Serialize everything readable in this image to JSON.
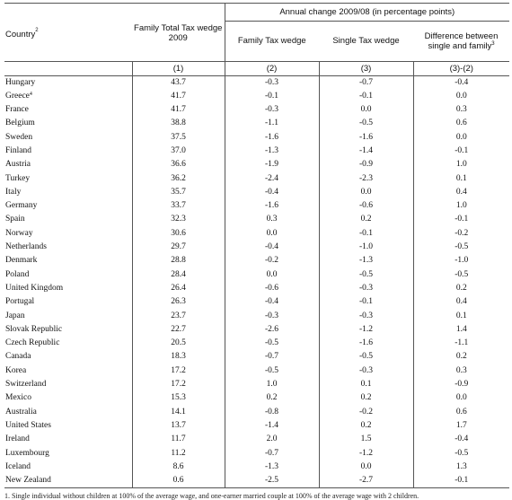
{
  "header": {
    "country": "Country",
    "country_sup": "2",
    "family_total_line1": "Family Total Tax wedge",
    "family_total_line2": "2009",
    "annual_change": "Annual change 2009/08  (in percentage points)",
    "family_tax_wedge": "Family Tax wedge",
    "single_tax_wedge": "Single Tax wedge",
    "difference_line1": "Difference between",
    "difference_line2": "single and family",
    "difference_sup": "3",
    "index_1": "(1)",
    "index_2": "(2)",
    "index_3": "(3)",
    "index_4": "(3)-(2)"
  },
  "rows": [
    {
      "country": "Hungary",
      "sup": "",
      "total": "43.7",
      "family": "-0.3",
      "single": "-0.7",
      "diff": "-0.4"
    },
    {
      "country": "Greece",
      "sup": "4",
      "total": "41.7",
      "family": "-0.1",
      "single": "-0.1",
      "diff": "0.0"
    },
    {
      "country": "France",
      "sup": "",
      "total": "41.7",
      "family": "-0.3",
      "single": "0.0",
      "diff": "0.3"
    },
    {
      "country": "Belgium",
      "sup": "",
      "total": "38.8",
      "family": "-1.1",
      "single": "-0.5",
      "diff": "0.6"
    },
    {
      "country": "Sweden",
      "sup": "",
      "total": "37.5",
      "family": "-1.6",
      "single": "-1.6",
      "diff": "0.0"
    },
    {
      "country": "Finland",
      "sup": "",
      "total": "37.0",
      "family": "-1.3",
      "single": "-1.4",
      "diff": "-0.1"
    },
    {
      "country": "Austria",
      "sup": "",
      "total": "36.6",
      "family": "-1.9",
      "single": "-0.9",
      "diff": "1.0"
    },
    {
      "country": "Turkey",
      "sup": "",
      "total": "36.2",
      "family": "-2.4",
      "single": "-2.3",
      "diff": "0.1"
    },
    {
      "country": "Italy",
      "sup": "",
      "total": "35.7",
      "family": "-0.4",
      "single": "0.0",
      "diff": "0.4"
    },
    {
      "country": "Germany",
      "sup": "",
      "total": "33.7",
      "family": "-1.6",
      "single": "-0.6",
      "diff": "1.0"
    },
    {
      "country": "Spain",
      "sup": "",
      "total": "32.3",
      "family": "0.3",
      "single": "0.2",
      "diff": "-0.1"
    },
    {
      "country": "Norway",
      "sup": "",
      "total": "30.6",
      "family": "0.0",
      "single": "-0.1",
      "diff": "-0.2"
    },
    {
      "country": "Netherlands",
      "sup": "",
      "total": "29.7",
      "family": "-0.4",
      "single": "-1.0",
      "diff": "-0.5"
    },
    {
      "country": "Denmark",
      "sup": "",
      "total": "28.8",
      "family": "-0.2",
      "single": "-1.3",
      "diff": "-1.0"
    },
    {
      "country": "Poland",
      "sup": "",
      "total": "28.4",
      "family": "0.0",
      "single": "-0.5",
      "diff": "-0.5"
    },
    {
      "country": "United Kingdom",
      "sup": "",
      "total": "26.4",
      "family": "-0.6",
      "single": "-0.3",
      "diff": "0.2"
    },
    {
      "country": "Portugal",
      "sup": "",
      "total": "26.3",
      "family": "-0.4",
      "single": "-0.1",
      "diff": "0.4"
    },
    {
      "country": "Japan",
      "sup": "",
      "total": "23.7",
      "family": "-0.3",
      "single": "-0.3",
      "diff": "0.1"
    },
    {
      "country": "Slovak Republic",
      "sup": "",
      "total": "22.7",
      "family": "-2.6",
      "single": "-1.2",
      "diff": "1.4"
    },
    {
      "country": "Czech Republic",
      "sup": "",
      "total": "20.5",
      "family": "-0.5",
      "single": "-1.6",
      "diff": "-1.1"
    },
    {
      "country": "Canada",
      "sup": "",
      "total": "18.3",
      "family": "-0.7",
      "single": "-0.5",
      "diff": "0.2"
    },
    {
      "country": "Korea",
      "sup": "",
      "total": "17.2",
      "family": "-0.5",
      "single": "-0.3",
      "diff": "0.3"
    },
    {
      "country": "Switzerland",
      "sup": "",
      "total": "17.2",
      "family": "1.0",
      "single": "0.1",
      "diff": "-0.9"
    },
    {
      "country": "Mexico",
      "sup": "",
      "total": "15.3",
      "family": "0.2",
      "single": "0.2",
      "diff": "0.0"
    },
    {
      "country": "Australia",
      "sup": "",
      "total": "14.1",
      "family": "-0.8",
      "single": "-0.2",
      "diff": "0.6"
    },
    {
      "country": "United States",
      "sup": "",
      "total": "13.7",
      "family": "-1.4",
      "single": "0.2",
      "diff": "1.7"
    },
    {
      "country": "Ireland",
      "sup": "",
      "total": "11.7",
      "family": "2.0",
      "single": "1.5",
      "diff": "-0.4"
    },
    {
      "country": "Luxembourg",
      "sup": "",
      "total": "11.2",
      "family": "-0.7",
      "single": "-1.2",
      "diff": "-0.5"
    },
    {
      "country": "Iceland",
      "sup": "",
      "total": "8.6",
      "family": "-1.3",
      "single": "0.0",
      "diff": "1.3"
    },
    {
      "country": "New Zealand",
      "sup": "",
      "total": "0.6",
      "family": "-2.5",
      "single": "-2.7",
      "diff": "-0.1"
    }
  ],
  "footnote": "1. Single individual without children at 100% of the average wage, and one-earner married couple at 100% of the average wage with 2 children."
}
